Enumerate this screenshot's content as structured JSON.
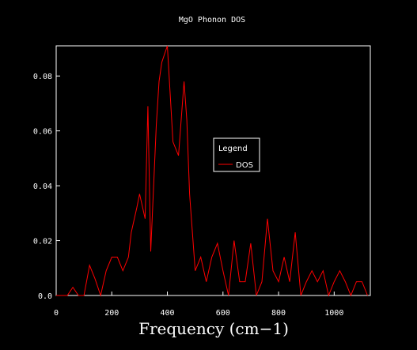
{
  "chart_data": {
    "type": "line",
    "title": "MgO Phonon DOS",
    "xlabel": "Frequency (cm−1)",
    "ylabel": "",
    "xlim": [
      0,
      1130
    ],
    "ylim": [
      0,
      0.091
    ],
    "xticks": [
      0,
      200,
      400,
      600,
      800,
      1000
    ],
    "yticks": [
      0.0,
      0.02,
      0.04,
      0.06,
      0.08
    ],
    "xtick_labels": [
      "0",
      "200",
      "400",
      "600",
      "800",
      "1000"
    ],
    "ytick_labels": [
      "0.0",
      "0.02",
      "0.04",
      "0.06",
      "0.08"
    ],
    "grid": false,
    "legend": {
      "title": "Legend",
      "position": "center-right"
    },
    "series": [
      {
        "name": "DOS",
        "color": "#ff0000",
        "x": [
          0,
          40,
          60,
          80,
          100,
          120,
          140,
          160,
          180,
          200,
          220,
          240,
          260,
          270,
          290,
          300,
          320,
          330,
          340,
          360,
          370,
          380,
          400,
          420,
          440,
          460,
          470,
          480,
          500,
          520,
          540,
          560,
          580,
          600,
          620,
          640,
          660,
          680,
          700,
          720,
          740,
          760,
          780,
          800,
          820,
          840,
          860,
          880,
          900,
          920,
          940,
          960,
          980,
          1000,
          1020,
          1040,
          1060,
          1080,
          1100,
          1120
        ],
        "y": [
          0,
          0,
          0.003,
          0,
          0,
          0.011,
          0.006,
          0,
          0.009,
          0.014,
          0.014,
          0.009,
          0.014,
          0.023,
          0.032,
          0.037,
          0.028,
          0.069,
          0.016,
          0.062,
          0.078,
          0.085,
          0.091,
          0.056,
          0.051,
          0.078,
          0.064,
          0.037,
          0.009,
          0.014,
          0.005,
          0.014,
          0.019,
          0.009,
          0,
          0.02,
          0.005,
          0.005,
          0.019,
          0,
          0.005,
          0.028,
          0.009,
          0.005,
          0.014,
          0.005,
          0.023,
          0,
          0.005,
          0.009,
          0.005,
          0.009,
          0,
          0.005,
          0.009,
          0.005,
          0,
          0.005,
          0.005,
          0
        ]
      }
    ]
  }
}
